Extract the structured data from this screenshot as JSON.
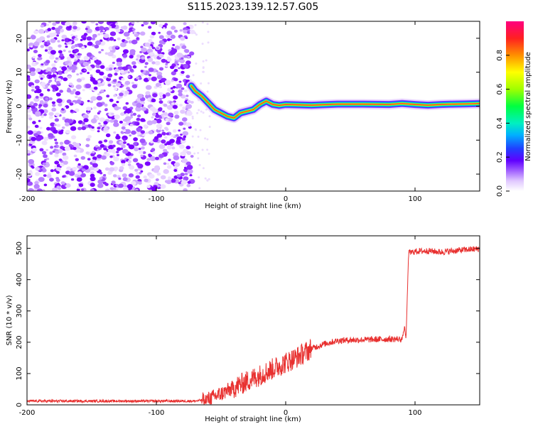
{
  "title": "S115.2023.139.12.57.G05",
  "colors": {
    "snr_line": "#e8302f",
    "colormap": [
      "#ffffff",
      "#e6c8ff",
      "#b070ff",
      "#8000ff",
      "#2020ff",
      "#00c0ff",
      "#00ff80",
      "#a0ff00",
      "#ffff00",
      "#ff9000",
      "#ff2020",
      "#ff0090"
    ]
  },
  "chart_data": [
    {
      "type": "heatmap",
      "name": "spectrogram",
      "xlabel": "Height of straight line (km)",
      "ylabel": "Frequency (Hz)",
      "xlim": [
        -200,
        150
      ],
      "ylim": [
        -25,
        25
      ],
      "xticks": [
        -200,
        -100,
        0,
        100
      ],
      "yticks": [
        -20,
        -10,
        0,
        10,
        20
      ],
      "ridge": {
        "x": [
          -73,
          -70,
          -65,
          -60,
          -55,
          -50,
          -45,
          -40,
          -35,
          -30,
          -25,
          -20,
          -15,
          -10,
          -5,
          0,
          10,
          20,
          40,
          60,
          80,
          90,
          100,
          110,
          120,
          130,
          140,
          150
        ],
        "y": [
          6,
          4.5,
          3,
          1,
          -1,
          -2,
          -3,
          -3.5,
          -2,
          -1.5,
          -1,
          0.5,
          1.5,
          0.5,
          0.2,
          0.5,
          0.4,
          0.3,
          0.6,
          0.6,
          0.5,
          0.8,
          0.5,
          0.3,
          0.5,
          0.6,
          0.7,
          0.8
        ]
      },
      "colorbar": {
        "label": "Normalized spectral amplitude",
        "range": [
          0,
          1
        ],
        "ticks": [
          0.0,
          0.2,
          0.4,
          0.6,
          0.8
        ]
      }
    },
    {
      "type": "line",
      "name": "snr",
      "xlabel": "Height of straight line (km)",
      "ylabel": "SNR (10 * v/v)",
      "xlim": [
        -200,
        150
      ],
      "ylim": [
        0,
        540
      ],
      "xticks": [
        -200,
        -100,
        0,
        100
      ],
      "yticks": [
        0,
        100,
        200,
        300,
        400,
        500
      ],
      "x": [
        -200,
        -150,
        -100,
        -70,
        -60,
        -50,
        -40,
        -30,
        -20,
        -10,
        0,
        10,
        20,
        30,
        40,
        50,
        60,
        70,
        80,
        90,
        92,
        93,
        95,
        100,
        110,
        120,
        130,
        140,
        150
      ],
      "y": [
        12,
        12,
        12,
        12,
        18,
        35,
        55,
        75,
        95,
        115,
        135,
        155,
        180,
        195,
        205,
        207,
        208,
        209,
        210,
        210,
        250,
        205,
        485,
        490,
        492,
        488,
        492,
        496,
        498
      ]
    }
  ]
}
